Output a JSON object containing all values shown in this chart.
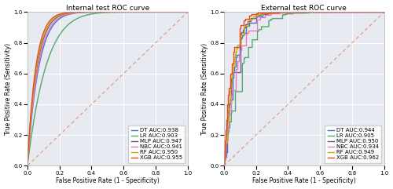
{
  "internal_title": "Internal test ROC curve",
  "external_title": "External test ROC curve",
  "xlabel": "False Positive Rate (1 - Specificity)",
  "ylabel": "True Positive Rate (Sensitivity)",
  "internal_models": [
    {
      "label": "DT AUC:0.938",
      "color": "#4472C4",
      "auc": 0.938,
      "beta": 14.0
    },
    {
      "label": "LR AUC:0.903",
      "color": "#55A868",
      "auc": 0.903,
      "beta": 8.5
    },
    {
      "label": "MLP AUC:0.947",
      "color": "#7B52A0",
      "auc": 0.947,
      "beta": 16.5
    },
    {
      "label": "NBC AUC:0.941",
      "color": "#E87AAF",
      "auc": 0.941,
      "beta": 15.0
    },
    {
      "label": "RF AUC:0.950",
      "color": "#C9B000",
      "auc": 0.95,
      "beta": 17.5
    },
    {
      "label": "XGB AUC:0.955",
      "color": "#E84820",
      "auc": 0.955,
      "beta": 19.0
    }
  ],
  "external_models": [
    {
      "label": "DT AUC:0.944",
      "color": "#4472C4",
      "auc": 0.944,
      "beta": 15.5
    },
    {
      "label": "LR AUC:0.905",
      "color": "#55A868",
      "auc": 0.905,
      "beta": 8.8
    },
    {
      "label": "MLP AUC:0.950",
      "color": "#7B52A0",
      "auc": 0.95,
      "beta": 17.5
    },
    {
      "label": "NBC AUC:0.934",
      "color": "#E87AAF",
      "auc": 0.934,
      "beta": 13.0
    },
    {
      "label": "RF AUC:0.949",
      "color": "#C9B000",
      "auc": 0.949,
      "beta": 17.0
    },
    {
      "label": "XGB AUC:0.962",
      "color": "#E84820",
      "auc": 0.962,
      "beta": 22.0
    }
  ],
  "bg_color": "#E8EAF2",
  "diagonal_color": "#E8845A",
  "linewidth": 1.0,
  "fontsize_title": 6.5,
  "fontsize_label": 5.5,
  "fontsize_tick": 5.0,
  "fontsize_legend": 5.0
}
